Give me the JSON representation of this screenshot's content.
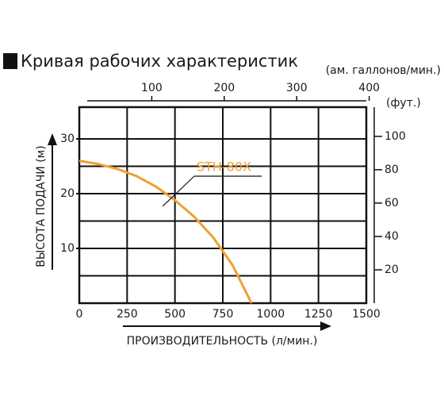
{
  "chart_data": {
    "type": "line",
    "title": "Кривая рабочих характеристик",
    "x_label": "ПРОИЗВОДИТЕЛЬНОСТЬ (л/мин.)",
    "y_label": "ВЫСОТА ПОДАЧИ (м)",
    "x2_label": "(ам. галлонов/мин.)",
    "y2_label": "(фут.)",
    "x": [
      0,
      100,
      200,
      300,
      400,
      500,
      600,
      700,
      800,
      900
    ],
    "series": [
      {
        "name": "STH-80X",
        "color": "#f0a030",
        "values": [
          26,
          25.4,
          24.5,
          23.2,
          21.3,
          18.8,
          15.8,
          12,
          7,
          0
        ]
      }
    ],
    "xlim": [
      0,
      1500
    ],
    "xticks": [
      0,
      250,
      500,
      750,
      1000,
      1250,
      1500
    ],
    "ylim": [
      0,
      35.8
    ],
    "yticks": [
      10,
      20,
      30
    ],
    "ygrid": [
      5,
      10,
      15,
      20,
      25,
      30
    ],
    "x2lim": [
      0,
      396
    ],
    "x2ticks": [
      100,
      200,
      300,
      400
    ],
    "y2lim": [
      0,
      117.5
    ],
    "y2ticks": [
      20,
      40,
      60,
      80,
      100
    ],
    "grid": true
  }
}
